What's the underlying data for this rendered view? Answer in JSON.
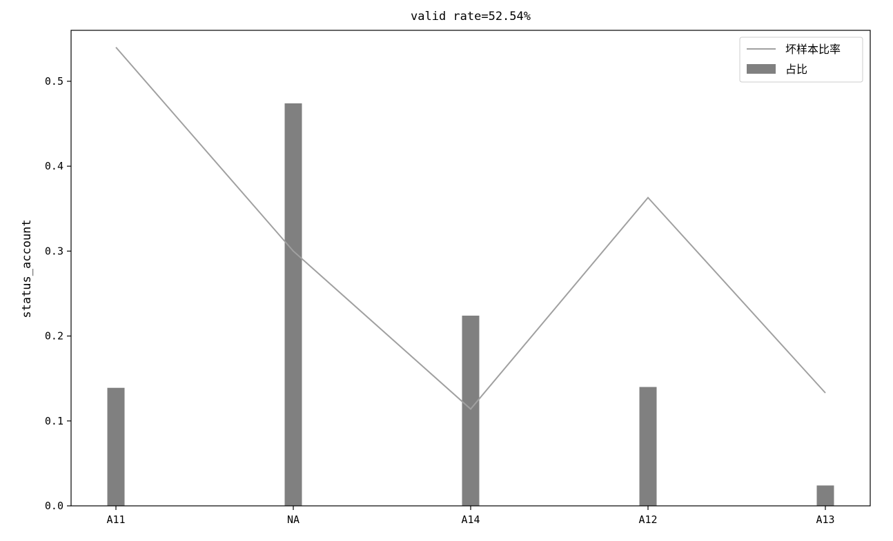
{
  "chart_data": {
    "type": "bar",
    "title": "valid rate=52.54%",
    "xlabel": "",
    "ylabel": "status_account",
    "categories": [
      "A11",
      "NA",
      "A14",
      "A12",
      "A13"
    ],
    "ylim": [
      0,
      0.56
    ],
    "yticks": [
      "0.0",
      "0.1",
      "0.2",
      "0.3",
      "0.4",
      "0.5"
    ],
    "series": [
      {
        "name": "占比",
        "kind": "bar",
        "values": [
          0.139,
          0.474,
          0.224,
          0.14,
          0.024
        ],
        "color": "#808080"
      },
      {
        "name": "坏样本比率",
        "kind": "line",
        "values": [
          0.54,
          0.3,
          0.114,
          0.363,
          0.133
        ],
        "color": "#a0a0a0"
      }
    ],
    "legend": {
      "placement": "top-right",
      "entries": [
        "坏样本比率",
        "占比"
      ]
    },
    "grid": false
  }
}
